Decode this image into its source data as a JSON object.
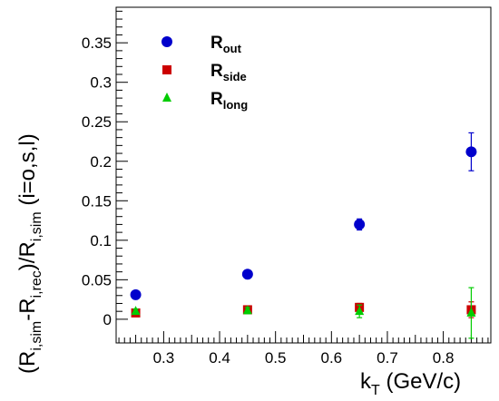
{
  "chart_data": {
    "type": "scatter",
    "xlim": [
      0.215,
      0.885
    ],
    "ylim": [
      -0.03,
      0.395
    ],
    "x_ticks": [
      {
        "v": 0.3,
        "label": "0.3"
      },
      {
        "v": 0.4,
        "label": "0.4"
      },
      {
        "v": 0.5,
        "label": "0.5"
      },
      {
        "v": 0.6,
        "label": "0.6"
      },
      {
        "v": 0.7,
        "label": "0.7"
      },
      {
        "v": 0.8,
        "label": "0.8"
      }
    ],
    "y_ticks": [
      {
        "v": 0,
        "label": "0"
      },
      {
        "v": 0.05,
        "label": "0.05"
      },
      {
        "v": 0.1,
        "label": "0.1"
      },
      {
        "v": 0.15,
        "label": "0.15"
      },
      {
        "v": 0.2,
        "label": "0.2"
      },
      {
        "v": 0.25,
        "label": "0.25"
      },
      {
        "v": 0.3,
        "label": "0.3"
      },
      {
        "v": 0.35,
        "label": "0.35"
      }
    ],
    "xlabel": {
      "main": "k",
      "sub": "T",
      "rest": " (GeV/c)"
    },
    "ylabel": {
      "p1": "(R",
      "s1": "i,sim",
      "p2": "-R",
      "s2": "i,rec",
      "p3": ")/R",
      "s3": "i,sim",
      "p4": " (i=o,s,l)"
    },
    "legend_position": "top-left",
    "series": [
      {
        "name": "R",
        "sub": "out",
        "marker": "circle",
        "color": "#0000cc",
        "points": [
          {
            "x": 0.25,
            "y": 0.031,
            "err": 0.002
          },
          {
            "x": 0.45,
            "y": 0.057,
            "err": 0.003
          },
          {
            "x": 0.65,
            "y": 0.12,
            "err": 0.007
          },
          {
            "x": 0.85,
            "y": 0.212,
            "err": 0.024
          }
        ]
      },
      {
        "name": "R",
        "sub": "side",
        "marker": "square",
        "color": "#cc0000",
        "points": [
          {
            "x": 0.25,
            "y": 0.008,
            "err": 0.003
          },
          {
            "x": 0.45,
            "y": 0.012,
            "err": 0.003
          },
          {
            "x": 0.65,
            "y": 0.015,
            "err": 0.005
          },
          {
            "x": 0.85,
            "y": 0.012,
            "err": 0.01
          }
        ]
      },
      {
        "name": "R",
        "sub": "long",
        "marker": "triangle",
        "color": "#00cc00",
        "points": [
          {
            "x": 0.25,
            "y": 0.01,
            "err": 0.003
          },
          {
            "x": 0.45,
            "y": 0.011,
            "err": 0.004
          },
          {
            "x": 0.65,
            "y": 0.01,
            "err": 0.008
          },
          {
            "x": 0.85,
            "y": 0.008,
            "err": 0.032
          }
        ]
      }
    ]
  }
}
